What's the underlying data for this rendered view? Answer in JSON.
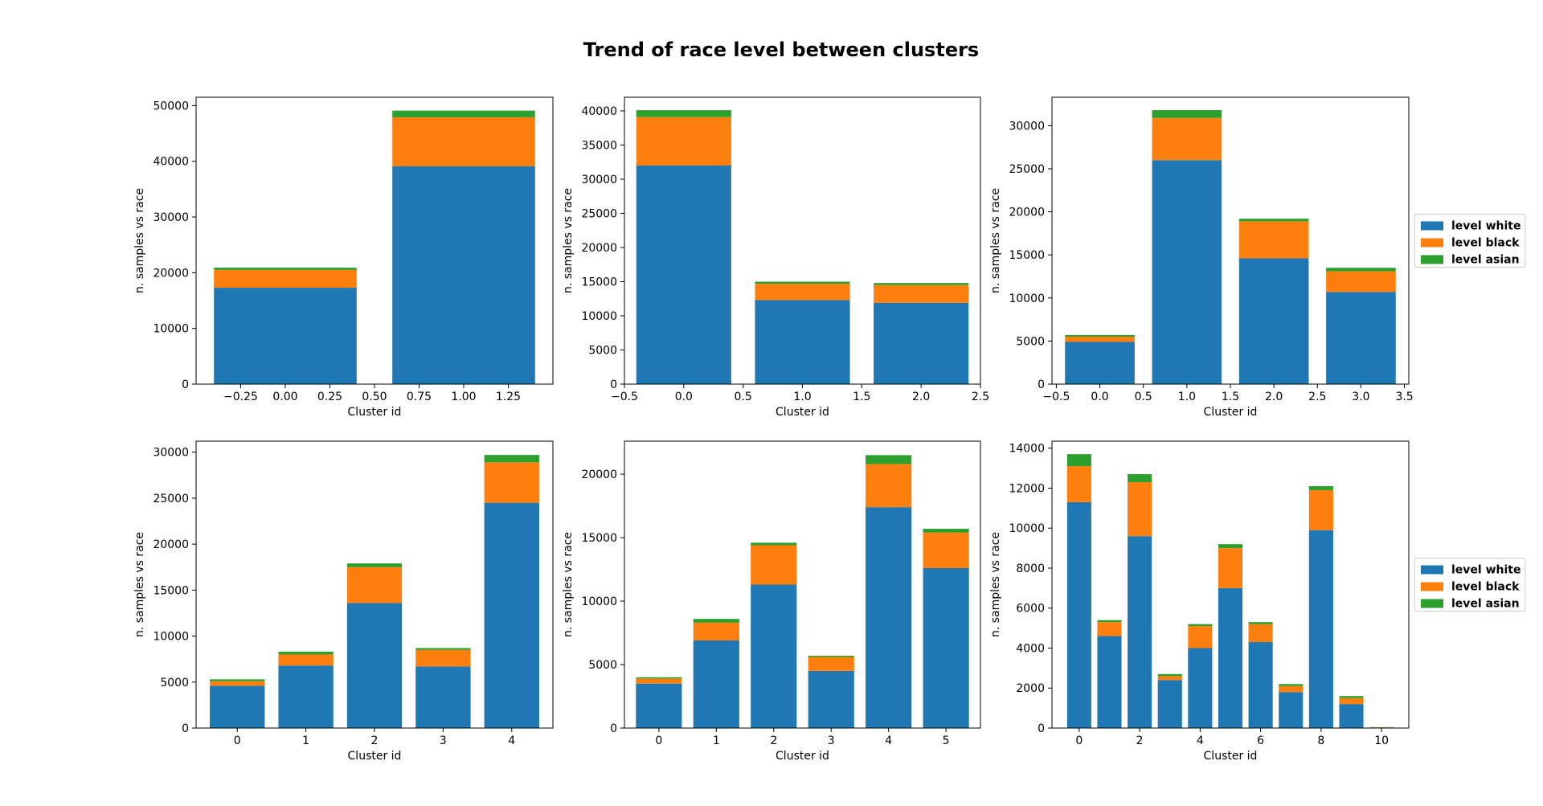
{
  "figure": {
    "title": "Trend of race level between clusters"
  },
  "colors": {
    "level white": "#1f77b4",
    "level black": "#ff7f0e",
    "level asian": "#2ca02c"
  },
  "legend": {
    "entries": [
      "level white",
      "level black",
      "level asian"
    ],
    "placement": "right of right-column subplots"
  },
  "chart_data": [
    {
      "type": "bar",
      "stacked": true,
      "xlabel": "Cluster id",
      "ylabel": "n. samples vs race",
      "x": [
        0,
        1
      ],
      "xlim": [
        -0.5,
        1.5
      ],
      "ylim": [
        0,
        51500
      ],
      "xticks": [
        -0.25,
        0.0,
        0.25,
        0.5,
        0.75,
        1.0,
        1.25
      ],
      "xtick_labels": [
        "−0.25",
        "0.00",
        "0.25",
        "0.50",
        "0.75",
        "1.00",
        "1.25"
      ],
      "yticks": [
        0,
        10000,
        20000,
        30000,
        40000,
        50000
      ],
      "ytick_labels": [
        "0",
        "10000",
        "20000",
        "30000",
        "40000",
        "50000"
      ],
      "series": [
        {
          "name": "level white",
          "values": [
            17300,
            39100
          ]
        },
        {
          "name": "level black",
          "values": [
            3200,
            8800
          ]
        },
        {
          "name": "level asian",
          "values": [
            400,
            1200
          ]
        }
      ],
      "legend": false
    },
    {
      "type": "bar",
      "stacked": true,
      "xlabel": "Cluster id",
      "ylabel": "n. samples vs race",
      "x": [
        0,
        1,
        2
      ],
      "xlim": [
        -0.5,
        2.5
      ],
      "ylim": [
        0,
        42000
      ],
      "xticks": [
        -0.5,
        0.0,
        0.5,
        1.0,
        1.5,
        2.0,
        2.5
      ],
      "xtick_labels": [
        "−0.5",
        "0.0",
        "0.5",
        "1.0",
        "1.5",
        "2.0",
        "2.5"
      ],
      "yticks": [
        0,
        5000,
        10000,
        15000,
        20000,
        25000,
        30000,
        35000,
        40000
      ],
      "ytick_labels": [
        "0",
        "5000",
        "10000",
        "15000",
        "20000",
        "25000",
        "30000",
        "35000",
        "40000"
      ],
      "series": [
        {
          "name": "level white",
          "values": [
            32000,
            12300,
            11900
          ]
        },
        {
          "name": "level black",
          "values": [
            7100,
            2400,
            2600
          ]
        },
        {
          "name": "level asian",
          "values": [
            1000,
            300,
            300
          ]
        }
      ],
      "legend": false
    },
    {
      "type": "bar",
      "stacked": true,
      "xlabel": "Cluster id",
      "ylabel": "n. samples vs race",
      "x": [
        0,
        1,
        2,
        3
      ],
      "xlim": [
        -0.55,
        3.55
      ],
      "ylim": [
        0,
        33300
      ],
      "xticks": [
        -0.5,
        0.0,
        0.5,
        1.0,
        1.5,
        2.0,
        2.5,
        3.0,
        3.5
      ],
      "xtick_labels": [
        "−0.5",
        "0.0",
        "0.5",
        "1.0",
        "1.5",
        "2.0",
        "2.5",
        "3.0",
        "3.5"
      ],
      "yticks": [
        0,
        5000,
        10000,
        15000,
        20000,
        25000,
        30000
      ],
      "ytick_labels": [
        "0",
        "5000",
        "10000",
        "15000",
        "20000",
        "25000",
        "30000"
      ],
      "series": [
        {
          "name": "level white",
          "values": [
            4900,
            26000,
            14600,
            10700
          ]
        },
        {
          "name": "level black",
          "values": [
            600,
            4900,
            4300,
            2400
          ]
        },
        {
          "name": "level asian",
          "values": [
            200,
            900,
            300,
            400
          ]
        }
      ],
      "legend": true
    },
    {
      "type": "bar",
      "stacked": true,
      "xlabel": "Cluster id",
      "ylabel": "n. samples vs race",
      "x": [
        0,
        1,
        2,
        3,
        4
      ],
      "xlim": [
        -0.6,
        4.6
      ],
      "ylim": [
        0,
        31200
      ],
      "xticks": [
        0,
        1,
        2,
        3,
        4
      ],
      "xtick_labels": [
        "0",
        "1",
        "2",
        "3",
        "4"
      ],
      "yticks": [
        0,
        5000,
        10000,
        15000,
        20000,
        25000,
        30000
      ],
      "ytick_labels": [
        "0",
        "5000",
        "10000",
        "15000",
        "20000",
        "25000",
        "30000"
      ],
      "series": [
        {
          "name": "level white",
          "values": [
            4600,
            6800,
            13600,
            6700,
            24500
          ]
        },
        {
          "name": "level black",
          "values": [
            500,
            1200,
            3900,
            1800,
            4400
          ]
        },
        {
          "name": "level asian",
          "values": [
            200,
            300,
            400,
            200,
            800
          ]
        }
      ],
      "legend": false
    },
    {
      "type": "bar",
      "stacked": true,
      "xlabel": "Cluster id",
      "ylabel": "n. samples vs race",
      "x": [
        0,
        1,
        2,
        3,
        4,
        5
      ],
      "xlim": [
        -0.6,
        5.6
      ],
      "ylim": [
        0,
        22600
      ],
      "xticks": [
        0,
        1,
        2,
        3,
        4,
        5
      ],
      "xtick_labels": [
        "0",
        "1",
        "2",
        "3",
        "4",
        "5"
      ],
      "yticks": [
        0,
        5000,
        10000,
        15000,
        20000
      ],
      "ytick_labels": [
        "0",
        "5000",
        "10000",
        "15000",
        "20000"
      ],
      "series": [
        {
          "name": "level white",
          "values": [
            3500,
            6900,
            11300,
            4500,
            17400,
            12600
          ]
        },
        {
          "name": "level black",
          "values": [
            400,
            1400,
            3100,
            1100,
            3400,
            2800
          ]
        },
        {
          "name": "level asian",
          "values": [
            100,
            300,
            200,
            100,
            700,
            300
          ]
        }
      ],
      "legend": false
    },
    {
      "type": "bar",
      "stacked": true,
      "xlabel": "Cluster id",
      "ylabel": "n. samples vs race",
      "x": [
        0,
        1,
        2,
        3,
        4,
        5,
        6,
        7,
        8,
        9,
        10
      ],
      "xlim": [
        -0.9,
        10.9
      ],
      "ylim": [
        0,
        14350
      ],
      "xticks": [
        0,
        2,
        4,
        6,
        8,
        10
      ],
      "xtick_labels": [
        "0",
        "2",
        "4",
        "6",
        "8",
        "10"
      ],
      "yticks": [
        0,
        2000,
        4000,
        6000,
        8000,
        10000,
        12000,
        14000
      ],
      "ytick_labels": [
        "0",
        "2000",
        "4000",
        "6000",
        "8000",
        "10000",
        "12000",
        "14000"
      ],
      "series": [
        {
          "name": "level white",
          "values": [
            11300,
            4600,
            9600,
            2400,
            4000,
            7000,
            4300,
            1800,
            9900,
            1200,
            30
          ]
        },
        {
          "name": "level black",
          "values": [
            1800,
            700,
            2700,
            200,
            1100,
            2000,
            900,
            300,
            2000,
            300,
            10
          ]
        },
        {
          "name": "level asian",
          "values": [
            600,
            100,
            400,
            100,
            100,
            200,
            100,
            100,
            200,
            100,
            5
          ]
        }
      ],
      "legend": true
    }
  ]
}
